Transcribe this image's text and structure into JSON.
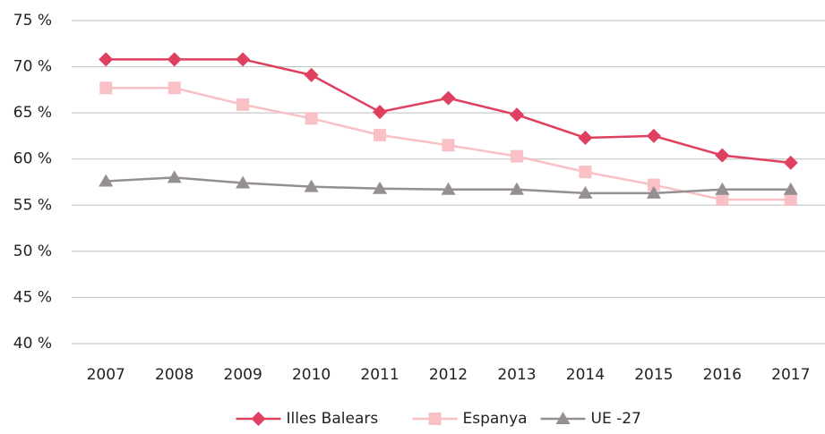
{
  "chart_data": {
    "type": "line",
    "categories": [
      "2007",
      "2008",
      "2009",
      "2010",
      "2011",
      "2012",
      "2013",
      "2014",
      "2015",
      "2016",
      "2017"
    ],
    "series": [
      {
        "name": "Illes Balears",
        "color": "#e0405f",
        "marker": "diamond",
        "values": [
          70.8,
          70.8,
          70.8,
          69.1,
          65.1,
          66.6,
          64.8,
          62.3,
          62.5,
          60.4,
          59.6
        ]
      },
      {
        "name": "Espanya",
        "color": "#f9c0c6",
        "marker": "square",
        "values": [
          67.7,
          67.7,
          65.9,
          64.4,
          62.6,
          61.5,
          60.3,
          58.6,
          57.2,
          55.6,
          55.6
        ]
      },
      {
        "name": "UE -27",
        "color": "#958f8f",
        "marker": "triangle",
        "values": [
          57.6,
          58.0,
          57.4,
          57.0,
          56.8,
          56.7,
          56.7,
          56.3,
          56.3,
          56.7,
          56.7
        ]
      }
    ],
    "ylim": [
      40,
      75
    ],
    "yticks": [
      {
        "value": 40,
        "label": "40 %"
      },
      {
        "value": 45,
        "label": "45 %"
      },
      {
        "value": 50,
        "label": "50 %"
      },
      {
        "value": 55,
        "label": "55 %"
      },
      {
        "value": 60,
        "label": "60 %"
      },
      {
        "value": 65,
        "label": "65 %"
      },
      {
        "value": 70,
        "label": "70 %"
      },
      {
        "value": 75,
        "label": "75 %"
      }
    ],
    "grid": true,
    "legend": "bottom"
  }
}
